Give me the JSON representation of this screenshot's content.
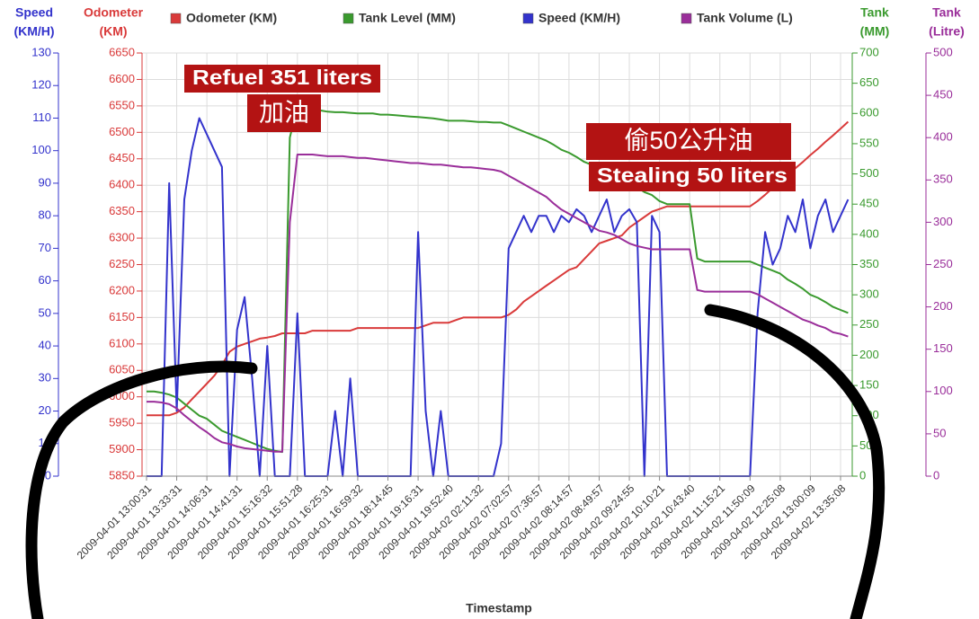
{
  "chart_data": {
    "type": "line",
    "categories": [
      "2009-04-01 13:00:31",
      null,
      null,
      null,
      "2009-04-01 13:33:31",
      null,
      null,
      null,
      "2009-04-01 14:06:31",
      null,
      null,
      null,
      "2009-04-01 14:41:31",
      null,
      null,
      null,
      "2009-04-01 15:16:32",
      null,
      null,
      null,
      "2009-04-01 15:51:28",
      null,
      null,
      null,
      "2009-04-01 16:25:31",
      null,
      null,
      null,
      "2009-04-01 16:59:32",
      null,
      null,
      null,
      "2009-04-01 18:14:45",
      null,
      null,
      null,
      "2009-04-01 19:16:31",
      null,
      null,
      null,
      "2009-04-01 19:52:40",
      null,
      null,
      null,
      "2009-04-02 02:11:32",
      null,
      null,
      null,
      "2009-04-02 07:02:57",
      null,
      null,
      null,
      "2009-04-02 07:36:57",
      null,
      null,
      null,
      "2009-04-02 08:14:57",
      null,
      null,
      null,
      "2009-04-02 08:49:57",
      null,
      null,
      null,
      "2009-04-02 09:24:55",
      null,
      null,
      null,
      "2009-04-02 10:10:21",
      null,
      null,
      null,
      "2009-04-02 10:43:40",
      null,
      null,
      null,
      "2009-04-02 11:15:21",
      null,
      null,
      null,
      "2009-04-02 11:50:09",
      null,
      null,
      null,
      "2009-04-02 12:25:08",
      null,
      null,
      null,
      "2009-04-02 13:00:09",
      null,
      null,
      null,
      "2009-04-02 13:35:08",
      null
    ],
    "xlabel": "Timestamp",
    "ylabel": [
      "Speed",
      "(KM/H)"
    ],
    "ylim": [
      0,
      130
    ],
    "yticks": [
      0,
      10,
      20,
      30,
      40,
      50,
      60,
      70,
      80,
      90,
      100,
      110,
      120,
      130
    ],
    "y2label": [
      "Odometer",
      "(KM)"
    ],
    "y2lim": [
      5850,
      6650
    ],
    "y2ticks": [
      5850,
      5900,
      5950,
      6000,
      6050,
      6100,
      6150,
      6200,
      6250,
      6300,
      6350,
      6400,
      6450,
      6500,
      6550,
      6600,
      6650
    ],
    "y3label": [
      "Tank",
      "(MM)"
    ],
    "y3lim": [
      0,
      700
    ],
    "y3ticks": [
      0,
      50,
      100,
      150,
      200,
      250,
      300,
      350,
      400,
      450,
      500,
      550,
      600,
      650,
      700
    ],
    "y4label": [
      "Tank",
      "(Litre)"
    ],
    "y4lim": [
      0,
      500
    ],
    "y4ticks": [
      0,
      50,
      100,
      150,
      200,
      250,
      300,
      350,
      400,
      450,
      500
    ],
    "grid": true,
    "series": [
      {
        "name": "Odometer (KM)",
        "color": "#d93a3a",
        "axis": "y2",
        "values": [
          5965,
          5965,
          5965,
          5965,
          5970,
          5980,
          5995,
          6010,
          6025,
          6040,
          6060,
          6085,
          6095,
          6100,
          6105,
          6110,
          6112,
          6115,
          6120,
          6120,
          6120,
          6120,
          6125,
          6125,
          6125,
          6125,
          6125,
          6125,
          6130,
          6130,
          6130,
          6130,
          6130,
          6130,
          6130,
          6130,
          6130,
          6135,
          6140,
          6140,
          6140,
          6145,
          6150,
          6150,
          6150,
          6150,
          6150,
          6150,
          6155,
          6165,
          6180,
          6190,
          6200,
          6210,
          6220,
          6230,
          6240,
          6245,
          6260,
          6275,
          6290,
          6295,
          6300,
          6305,
          6320,
          6330,
          6340,
          6350,
          6355,
          6360,
          6360,
          6360,
          6360,
          6360,
          6360,
          6360,
          6360,
          6360,
          6360,
          6360,
          6360,
          6370,
          6382,
          6395,
          6407,
          6420,
          6432,
          6444,
          6457,
          6469,
          6482,
          6494,
          6507,
          6520
        ]
      },
      {
        "name": "Tank Level (MM)",
        "color": "#3a9a2e",
        "axis": "y3",
        "values": [
          140,
          140,
          138,
          135,
          130,
          120,
          110,
          100,
          95,
          85,
          75,
          70,
          65,
          60,
          55,
          50,
          45,
          42,
          40,
          560,
          612,
          605,
          605,
          605,
          603,
          602,
          602,
          601,
          600,
          600,
          600,
          598,
          598,
          597,
          596,
          595,
          594,
          593,
          592,
          590,
          588,
          588,
          588,
          587,
          586,
          586,
          585,
          585,
          580,
          575,
          570,
          565,
          560,
          555,
          548,
          540,
          535,
          528,
          520,
          515,
          508,
          500,
          495,
          490,
          485,
          478,
          470,
          465,
          455,
          450,
          450,
          450,
          450,
          360,
          355,
          355,
          355,
          355,
          355,
          355,
          355,
          350,
          345,
          340,
          335,
          325,
          318,
          310,
          300,
          295,
          288,
          280,
          275,
          270
        ]
      },
      {
        "name": "Speed (KM/H)",
        "color": "#3333cc",
        "axis": "y",
        "values": [
          0,
          0,
          0,
          90,
          20,
          85,
          100,
          110,
          105,
          100,
          95,
          0,
          45,
          55,
          30,
          0,
          40,
          0,
          0,
          0,
          50,
          0,
          0,
          0,
          0,
          20,
          0,
          30,
          0,
          0,
          0,
          0,
          0,
          0,
          0,
          0,
          75,
          20,
          0,
          20,
          0,
          0,
          0,
          0,
          0,
          0,
          0,
          10,
          70,
          75,
          80,
          75,
          80,
          80,
          75,
          80,
          78,
          82,
          80,
          75,
          80,
          85,
          75,
          80,
          82,
          78,
          0,
          80,
          75,
          0,
          0,
          0,
          0,
          0,
          0,
          0,
          0,
          0,
          0,
          0,
          0,
          50,
          75,
          65,
          70,
          80,
          75,
          85,
          70,
          80,
          85,
          75,
          80,
          85
        ]
      },
      {
        "name": "Tank Volume (L)",
        "color": "#9a2e9a",
        "axis": "y4",
        "values": [
          88,
          88,
          87,
          85,
          80,
          72,
          65,
          58,
          52,
          45,
          40,
          38,
          35,
          33,
          32,
          31,
          30,
          29,
          29,
          300,
          380,
          380,
          380,
          379,
          378,
          378,
          378,
          377,
          376,
          376,
          375,
          374,
          373,
          372,
          371,
          370,
          370,
          369,
          368,
          368,
          367,
          366,
          365,
          365,
          364,
          363,
          362,
          360,
          355,
          350,
          345,
          340,
          335,
          330,
          322,
          315,
          310,
          305,
          300,
          295,
          290,
          288,
          285,
          280,
          275,
          272,
          270,
          268,
          268,
          268,
          268,
          268,
          268,
          220,
          218,
          218,
          218,
          218,
          218,
          218,
          218,
          215,
          210,
          205,
          200,
          195,
          190,
          185,
          182,
          178,
          175,
          170,
          168,
          165
        ]
      }
    ],
    "annotations": [
      "Refuel 351 liters",
      "加油",
      "偷50公升油",
      "Stealing 50 liters"
    ]
  }
}
